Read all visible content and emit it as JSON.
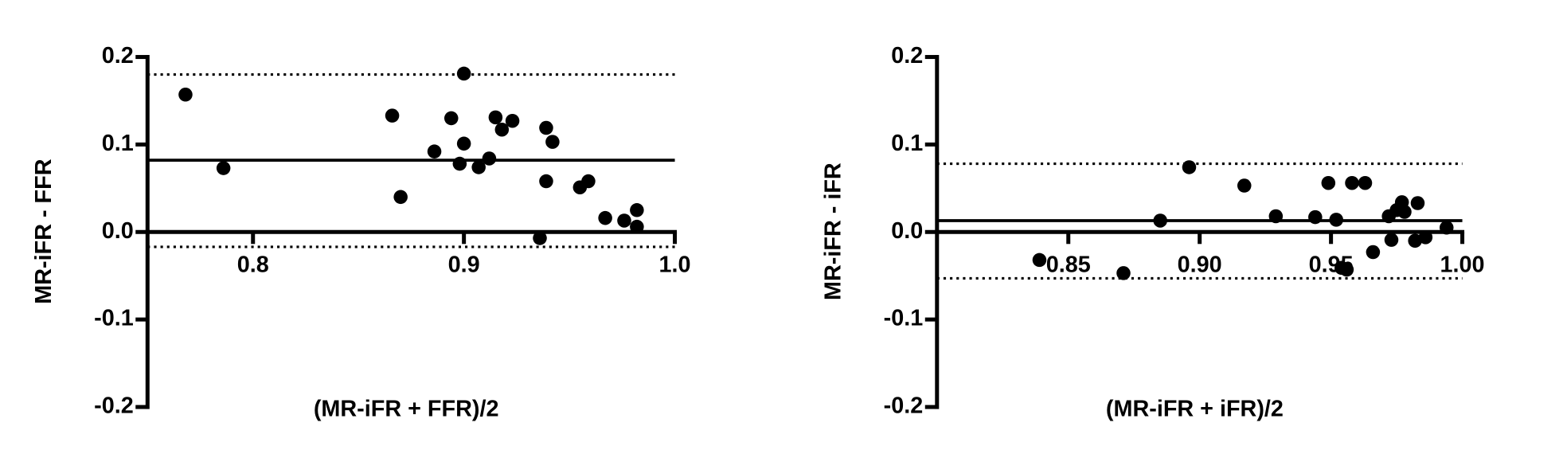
{
  "chart_data": [
    {
      "type": "scatter",
      "x_label": "(MR-iFR + FFR)/2",
      "y_label": "MR-iFR - FFR",
      "color": "#000000",
      "x": [
        0.768,
        0.786,
        0.866,
        0.87,
        0.886,
        0.894,
        0.9,
        0.9,
        0.898,
        0.907,
        0.912,
        0.915,
        0.918,
        0.923,
        0.939,
        0.942,
        0.939,
        0.936,
        0.955,
        0.959,
        0.967,
        0.976,
        0.982,
        0.982
      ],
      "y": [
        0.157,
        0.073,
        0.133,
        0.04,
        0.092,
        0.13,
        0.181,
        0.101,
        0.078,
        0.074,
        0.084,
        0.131,
        0.117,
        0.127,
        0.119,
        0.103,
        0.058,
        -0.007,
        0.051,
        0.058,
        0.016,
        0.013,
        0.025,
        0.006
      ],
      "reference_lines": [
        {
          "value": 0.082,
          "style": "solid"
        },
        {
          "value": 0.18,
          "style": "dotted"
        },
        {
          "value": -0.017,
          "style": "dotted"
        }
      ],
      "xlim": [
        0.75,
        1.0
      ],
      "ylim": [
        -0.2,
        0.2
      ],
      "xticks": [
        0.8,
        0.9,
        {
          "value": 1,
          "label": "1.0"
        }
      ],
      "yticks": [
        0.2,
        0.1,
        {
          "value": 0,
          "label": "0.0"
        },
        -0.1,
        -0.2
      ]
    },
    {
      "type": "scatter",
      "x_label": "(MR-iFR + iFR)/2",
      "y_label": "MR-iFR - iFR",
      "color": "#000000",
      "x": [
        0.839,
        0.871,
        0.885,
        0.896,
        0.917,
        0.929,
        0.944,
        0.949,
        0.952,
        0.954,
        0.956,
        0.958,
        0.963,
        0.966,
        0.972,
        0.973,
        0.975,
        0.977,
        0.978,
        0.982,
        0.983,
        0.986,
        0.994
      ],
      "y": [
        -0.032,
        -0.047,
        0.013,
        0.074,
        0.053,
        0.018,
        0.017,
        0.056,
        0.014,
        -0.041,
        -0.043,
        0.056,
        0.056,
        -0.023,
        0.018,
        -0.009,
        0.025,
        0.034,
        0.023,
        -0.01,
        0.033,
        -0.006,
        0.005
      ],
      "reference_lines": [
        {
          "value": 0.013,
          "style": "solid"
        },
        {
          "value": 0.078,
          "style": "dotted"
        },
        {
          "value": -0.053,
          "style": "dotted"
        }
      ],
      "xlim": [
        0.8,
        1.0
      ],
      "ylim": [
        -0.2,
        0.2
      ],
      "xticks": [
        0.85,
        {
          "value": 0.9,
          "label": "0.90"
        },
        0.95,
        {
          "value": 1,
          "label": "1.00"
        }
      ],
      "yticks": [
        0.2,
        0.1,
        {
          "value": 0,
          "label": "0.0"
        },
        -0.1,
        -0.2
      ]
    }
  ]
}
